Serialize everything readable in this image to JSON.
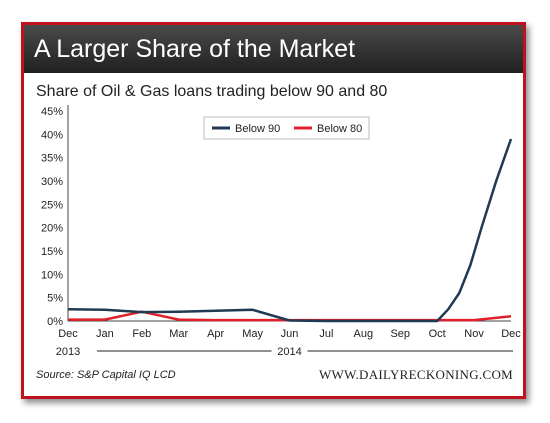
{
  "header": {
    "title": "A Larger Share of the Market",
    "subtitle": "Share of Oil & Gas loans trading below 90 and 80"
  },
  "footer": {
    "source": "Source: S&P Capital IQ LCD",
    "site": "WWW.DAILYRECKONING.COM"
  },
  "colors": {
    "accent": "#c0111f",
    "below90": "#1f3a52",
    "below80": "#e0202a"
  },
  "chart_data": {
    "type": "line",
    "title": "Share of Oil & Gas loans trading below 90 and 80",
    "x": [
      "Dec",
      "Jan",
      "Feb",
      "Mar",
      "Apr",
      "May",
      "Jun",
      "Jul",
      "Aug",
      "Sep",
      "Oct",
      "Nov",
      "Dec"
    ],
    "year_labels": [
      "2013",
      "2014"
    ],
    "yticks": [
      "0%",
      "5%",
      "10%",
      "15%",
      "20%",
      "25%",
      "30%",
      "35%",
      "40%",
      "45%"
    ],
    "ylim": [
      0,
      45
    ],
    "grid": false,
    "legend": "top-center",
    "series": [
      {
        "name": "Below 90",
        "color": "#1f3a52",
        "points": [
          [
            0,
            2.5
          ],
          [
            1,
            2.4
          ],
          [
            2,
            1.9
          ],
          [
            3,
            2.0
          ],
          [
            4,
            2.2
          ],
          [
            5,
            2.4
          ],
          [
            6,
            0.1
          ],
          [
            7,
            0
          ],
          [
            8,
            0
          ],
          [
            9,
            0
          ],
          [
            10,
            0
          ],
          [
            10.3,
            2.5
          ],
          [
            10.6,
            6
          ],
          [
            10.9,
            12
          ],
          [
            11.2,
            20
          ],
          [
            11.6,
            30
          ],
          [
            12,
            39
          ]
        ]
      },
      {
        "name": "Below 80",
        "color": "#e0202a",
        "points": [
          [
            0,
            0.3
          ],
          [
            1,
            0.3
          ],
          [
            2,
            2.0
          ],
          [
            3,
            0.3
          ],
          [
            4,
            0.2
          ],
          [
            5,
            0.2
          ],
          [
            6,
            0.2
          ],
          [
            7,
            0.2
          ],
          [
            8,
            0.2
          ],
          [
            9,
            0.2
          ],
          [
            10,
            0.2
          ],
          [
            11,
            0.2
          ],
          [
            12,
            1.0
          ]
        ]
      }
    ]
  }
}
